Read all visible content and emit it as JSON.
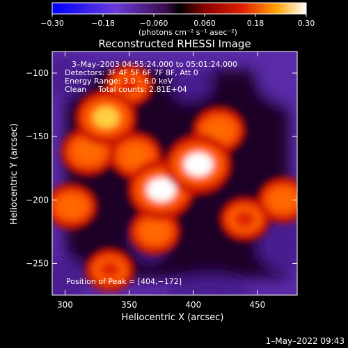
{
  "chart_data": {
    "type": "heatmap",
    "title": "Reconstructed RHESSI Image",
    "xlabel": "Heliocentric X (arcsec)",
    "ylabel": "Heliocentric Y (arcsec)",
    "xlim": [
      290,
      481
    ],
    "ylim": [
      -275,
      -83
    ],
    "xticks": [
      300,
      350,
      400,
      450
    ],
    "xtick_labels": [
      "300",
      "350",
      "400",
      "450"
    ],
    "yticks": [
      -100,
      -150,
      -200,
      -250
    ],
    "ytick_labels": [
      "−100",
      "−150",
      "−200",
      "−250"
    ],
    "colorbar": {
      "range": [
        -0.3,
        0.3
      ],
      "ticks": [
        -0.3,
        -0.18,
        -0.06,
        0.06,
        0.18,
        0.3
      ],
      "tick_labels": [
        "−0.30",
        "−0.18",
        "−0.060",
        "0.060",
        "0.18",
        "0.30"
      ],
      "unit_label": "(photons cm⁻² s⁻¹ asec⁻²)"
    },
    "annotations": {
      "time_range": "3–May–2003 04:55:24.000 to 05:01:24.000",
      "detectors": "Detectors: 3F 4F 5F 6F 7F 8F, Att 0",
      "energy": "Energy Range: 3.0 – 6.0 keV",
      "method": "Clean",
      "counts": "Total counts: 2.81E+04",
      "peak": "Position of Peak = [404,−172]"
    },
    "peak": [
      404,
      -172
    ],
    "sources": [
      {
        "x": 375,
        "y": -192,
        "level": 0.3
      },
      {
        "x": 404,
        "y": -172,
        "level": 0.3
      },
      {
        "x": 332,
        "y": -135,
        "level": 0.24
      },
      {
        "x": 318,
        "y": -162,
        "level": 0.15
      },
      {
        "x": 305,
        "y": -205,
        "level": 0.12
      },
      {
        "x": 355,
        "y": -165,
        "level": 0.14
      },
      {
        "x": 370,
        "y": -225,
        "level": 0.12
      },
      {
        "x": 420,
        "y": -145,
        "level": 0.14
      },
      {
        "x": 440,
        "y": -215,
        "level": 0.1
      },
      {
        "x": 470,
        "y": -200,
        "level": 0.12
      },
      {
        "x": 335,
        "y": -255,
        "level": 0.09
      },
      {
        "x": 350,
        "y": -110,
        "level": 0.08
      }
    ]
  },
  "footer": {
    "date_stamp": "1–May–2022 09:43"
  }
}
